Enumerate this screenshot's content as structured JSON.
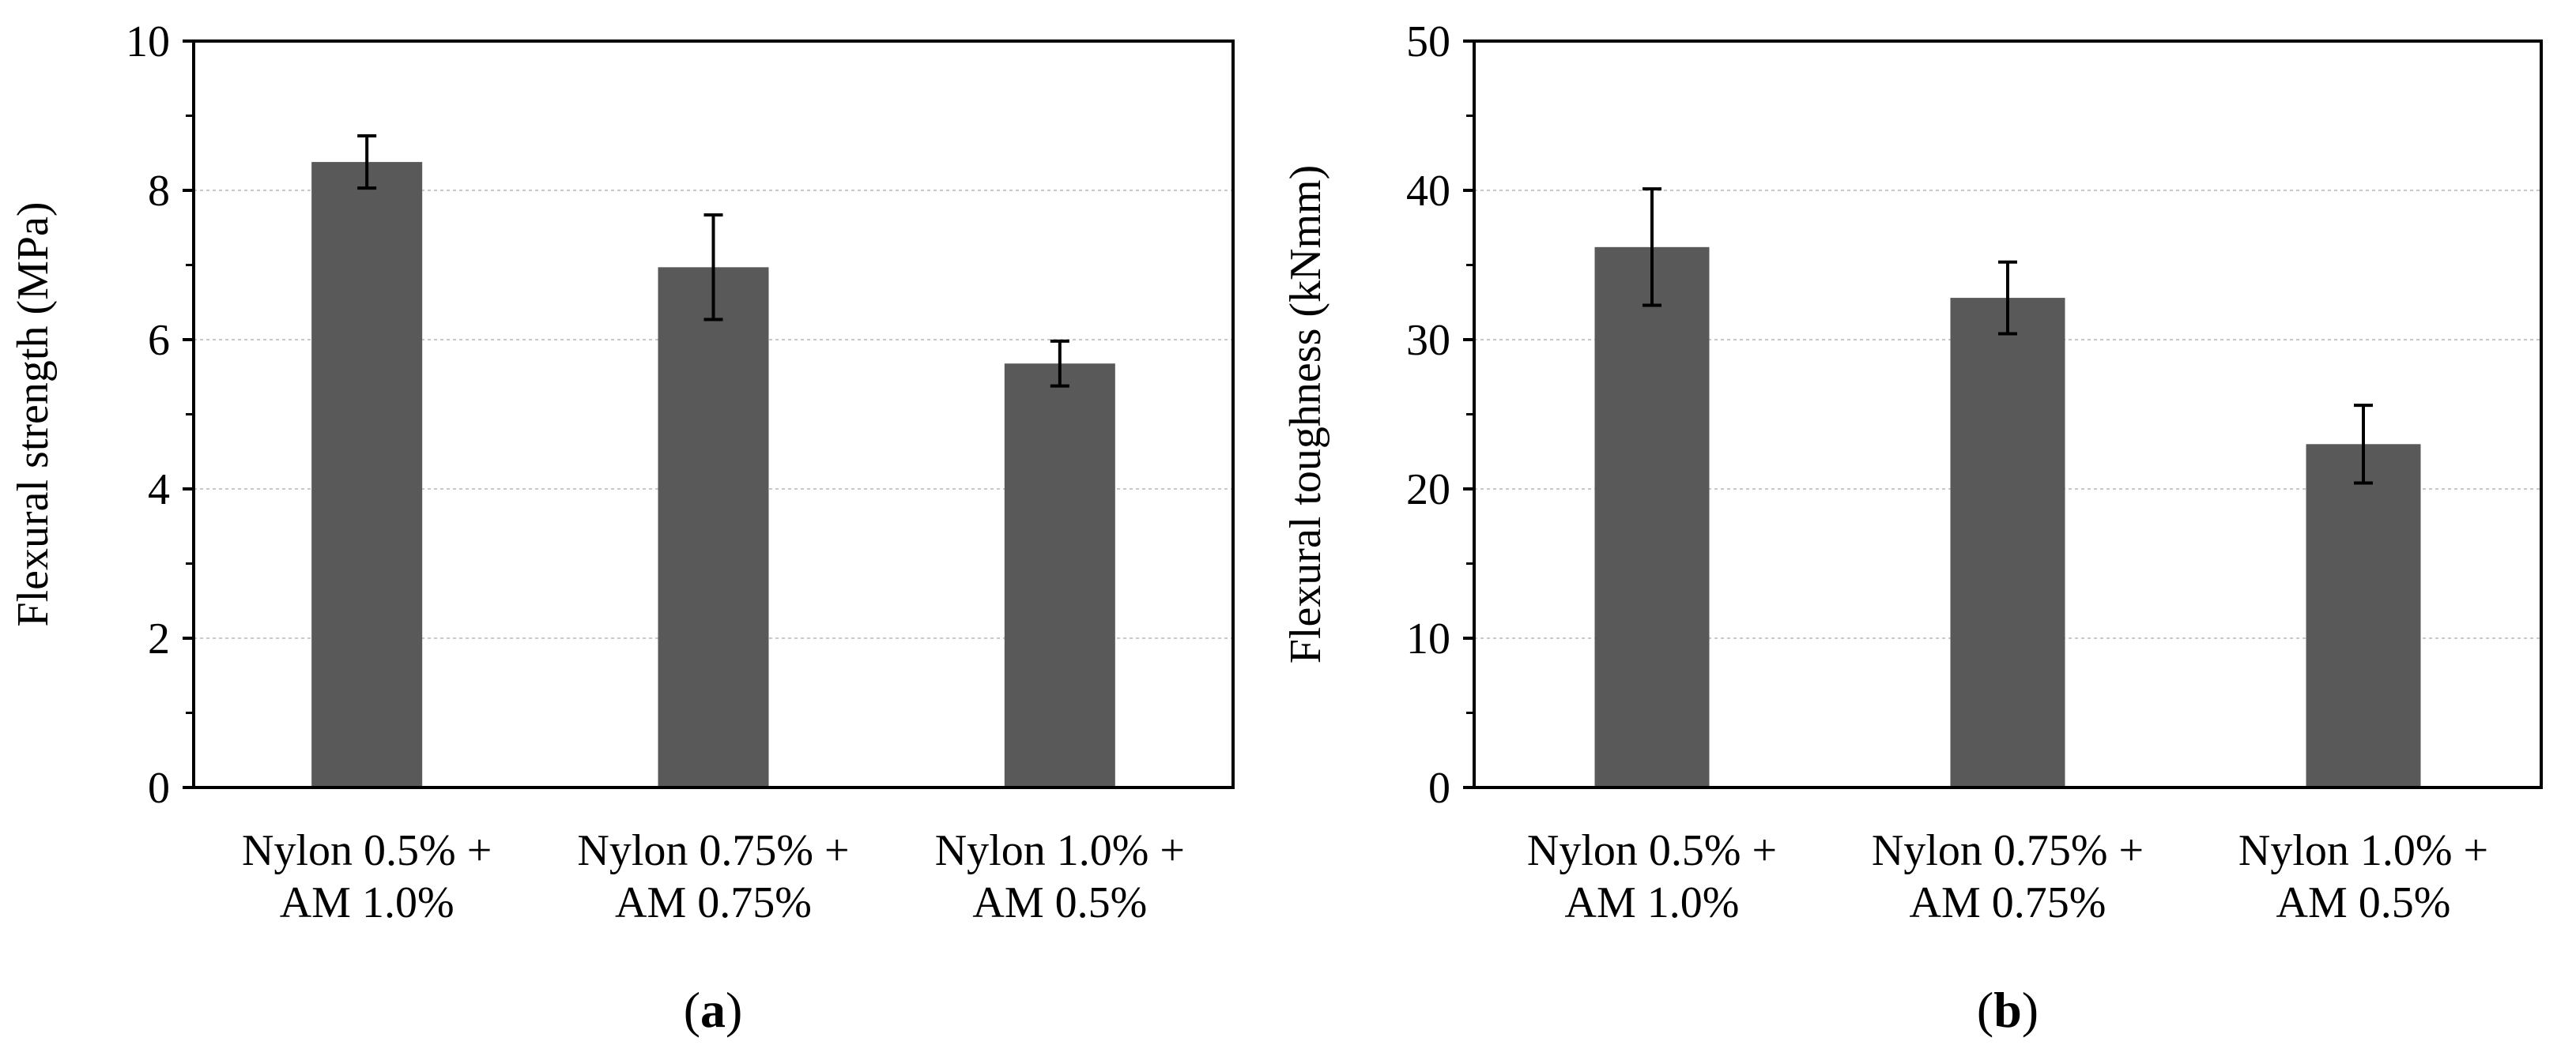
{
  "chart_data": [
    {
      "type": "bar",
      "panel_label": "a",
      "title": "",
      "xlabel": "",
      "ylabel": "Flexural strength (MPa)",
      "categories": [
        [
          "Nylon 0.5% +",
          "AM 1.0%"
        ],
        [
          "Nylon 0.75% +",
          "AM 0.75%"
        ],
        [
          "Nylon 1.0% +",
          "AM 0.5%"
        ]
      ],
      "values": [
        8.38,
        6.97,
        5.68
      ],
      "error": [
        0.35,
        0.7,
        0.3
      ],
      "ylim": [
        0,
        10
      ],
      "yticks": [
        0,
        2,
        4,
        6,
        8,
        10
      ],
      "grid": true,
      "bar_color": "#595959"
    },
    {
      "type": "bar",
      "panel_label": "b",
      "title": "",
      "xlabel": "",
      "ylabel": "Flexural toughness (kNmm)",
      "categories": [
        [
          "Nylon 0.5% +",
          "AM 1.0%"
        ],
        [
          "Nylon 0.75% +",
          "AM 0.75%"
        ],
        [
          "Nylon 1.0% +",
          "AM 0.5%"
        ]
      ],
      "values": [
        36.2,
        32.8,
        23.0
      ],
      "error": [
        3.9,
        2.4,
        2.6
      ],
      "ylim": [
        0,
        50
      ],
      "yticks": [
        0,
        10,
        20,
        30,
        40,
        50
      ],
      "grid": true,
      "bar_color": "#595959"
    }
  ]
}
